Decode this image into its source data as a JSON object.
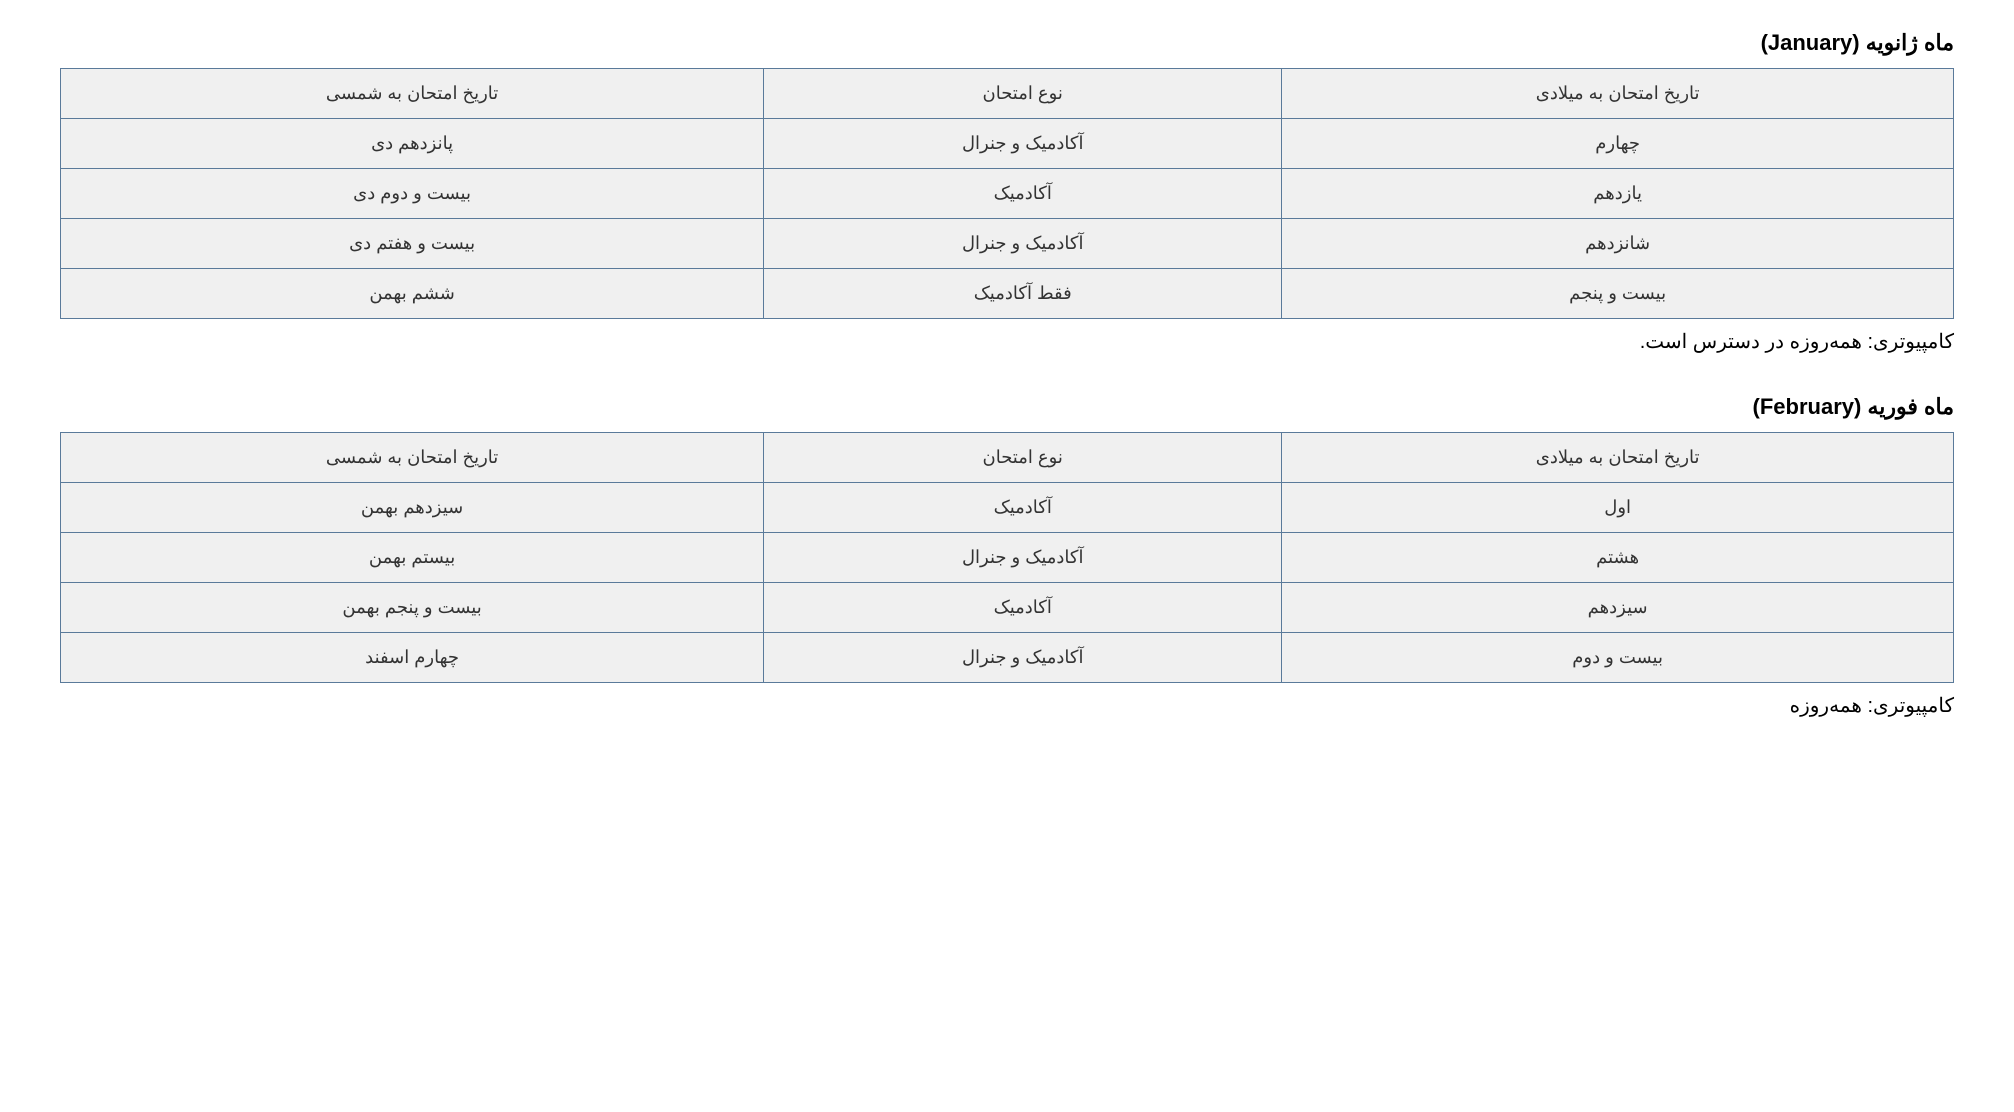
{
  "styling": {
    "background_color": "#ffffff",
    "text_color": "#000000",
    "table_border_color": "#5a7a9a",
    "cell_background_color": "#f0f0f0",
    "cell_text_color": "#333333",
    "title_fontsize": 22,
    "cell_fontsize": 18,
    "note_fontsize": 20,
    "font_family": "Tahoma"
  },
  "sections": [
    {
      "title": "ماه ژانویه (January)",
      "columns": [
        "تاریخ امتحان به میلادی",
        "نوع امتحان",
        "تاریخ امتحان به شمسی"
      ],
      "rows": [
        [
          "چهارم",
          "آکادمیک و جنرال",
          "پانزدهم دی"
        ],
        [
          "یازدهم",
          "آکادمیک",
          "بیست و دوم دی"
        ],
        [
          "شانزدهم",
          "آکادمیک و جنرال",
          "بیست و هفتم دی"
        ],
        [
          "بیست و پنجم",
          "فقط آکادمیک",
          "ششم بهمن"
        ]
      ],
      "note": "کامپیوتری: همه‌روزه در دسترس است."
    },
    {
      "title": "ماه فوریه (February)",
      "columns": [
        "تاریخ امتحان به میلادی",
        "نوع امتحان",
        "تاریخ امتحان به شمسی"
      ],
      "rows": [
        [
          "اول",
          "آکادمیک",
          "سیزدهم بهمن"
        ],
        [
          "هشتم",
          "آکادمیک و جنرال",
          "بیستم بهمن"
        ],
        [
          "سیزدهم",
          "آکادمیک",
          "بیست و پنجم بهمن"
        ],
        [
          "بیست و دوم",
          "آکادمیک و جنرال",
          "چهارم اسفند"
        ]
      ],
      "note": "کامپیوتری: همه‌روزه"
    }
  ]
}
